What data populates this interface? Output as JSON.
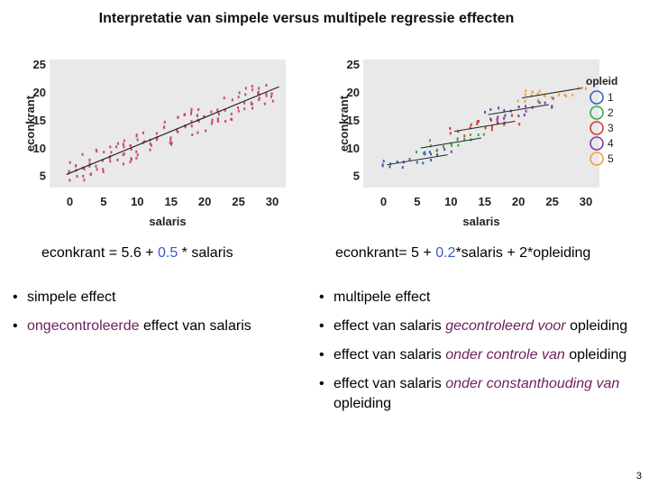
{
  "title": "Interpretatie van simpele versus multipele regressie effecten",
  "chart_data": [
    {
      "type": "scatter",
      "xlabel": "salaris",
      "ylabel": "econkrant",
      "xlim": [
        -3,
        32
      ],
      "ylim": [
        3,
        26
      ],
      "xticks": [
        "0",
        "5",
        "10",
        "15",
        "20",
        "25",
        "30"
      ],
      "yticks": [
        "5",
        "10",
        "15",
        "20",
        "25"
      ],
      "regression": {
        "intercept": 5.6,
        "slope": 0.5,
        "color": "#222222"
      },
      "point_color": "#c44a7a",
      "series": []
    },
    {
      "type": "scatter",
      "xlabel": "salaris",
      "ylabel": "econkrant",
      "xlim": [
        -3,
        32
      ],
      "ylim": [
        3,
        26
      ],
      "xticks": [
        "0",
        "5",
        "10",
        "15",
        "20",
        "25",
        "30"
      ],
      "yticks": [
        "5",
        "10",
        "15",
        "20",
        "25"
      ],
      "legend_title": "opleid",
      "legend_position": "right",
      "series": [
        {
          "name": "1",
          "color": "#3c5fb8",
          "x_range": [
            0,
            10
          ],
          "intercept": 7,
          "slope": 0.2
        },
        {
          "name": "2",
          "color": "#3aaa4a",
          "x_range": [
            5,
            15
          ],
          "intercept": 9,
          "slope": 0.2
        },
        {
          "name": "3",
          "color": "#cc3b3b",
          "x_range": [
            10,
            20
          ],
          "intercept": 11,
          "slope": 0.2
        },
        {
          "name": "4",
          "color": "#7b3f9e",
          "x_range": [
            15,
            25
          ],
          "intercept": 13,
          "slope": 0.2
        },
        {
          "name": "5",
          "color": "#f0a040",
          "x_range": [
            20,
            30
          ],
          "intercept": 15,
          "slope": 0.2
        }
      ]
    }
  ],
  "left": {
    "equation_prefix": "econkrant = 5.6 + ",
    "equation_coef": "0.5",
    "equation_suffix": " * salaris",
    "bullet1": "simpele effect",
    "bullet2_highlight": "ongecontroleerde",
    "bullet2_rest": " effect van salaris"
  },
  "right": {
    "equation_prefix": "econkrant= 5 + ",
    "equation_coef": "0.2",
    "equation_suffix": "*salaris + 2*opleiding",
    "bullet1": "multipele effect",
    "bullet2_prefix": "effect van salaris ",
    "bullet2_highlight": "gecontroleerd voor",
    "bullet2_suffix": " opleiding",
    "bullet3_prefix": "effect van salaris ",
    "bullet3_highlight": "onder controle van",
    "bullet3_suffix": " opleiding",
    "bullet4_prefix": "effect van salaris ",
    "bullet4_highlight1": "onder constanthouding",
    "bullet4_space": " ",
    "bullet4_highlight2": "van",
    "bullet4_suffix": " opleiding"
  },
  "page_number": "3",
  "colors": {
    "plot_bg": "#e9e9e9",
    "coef": "#3a5bc7",
    "highlight": "#6d1f5e"
  }
}
